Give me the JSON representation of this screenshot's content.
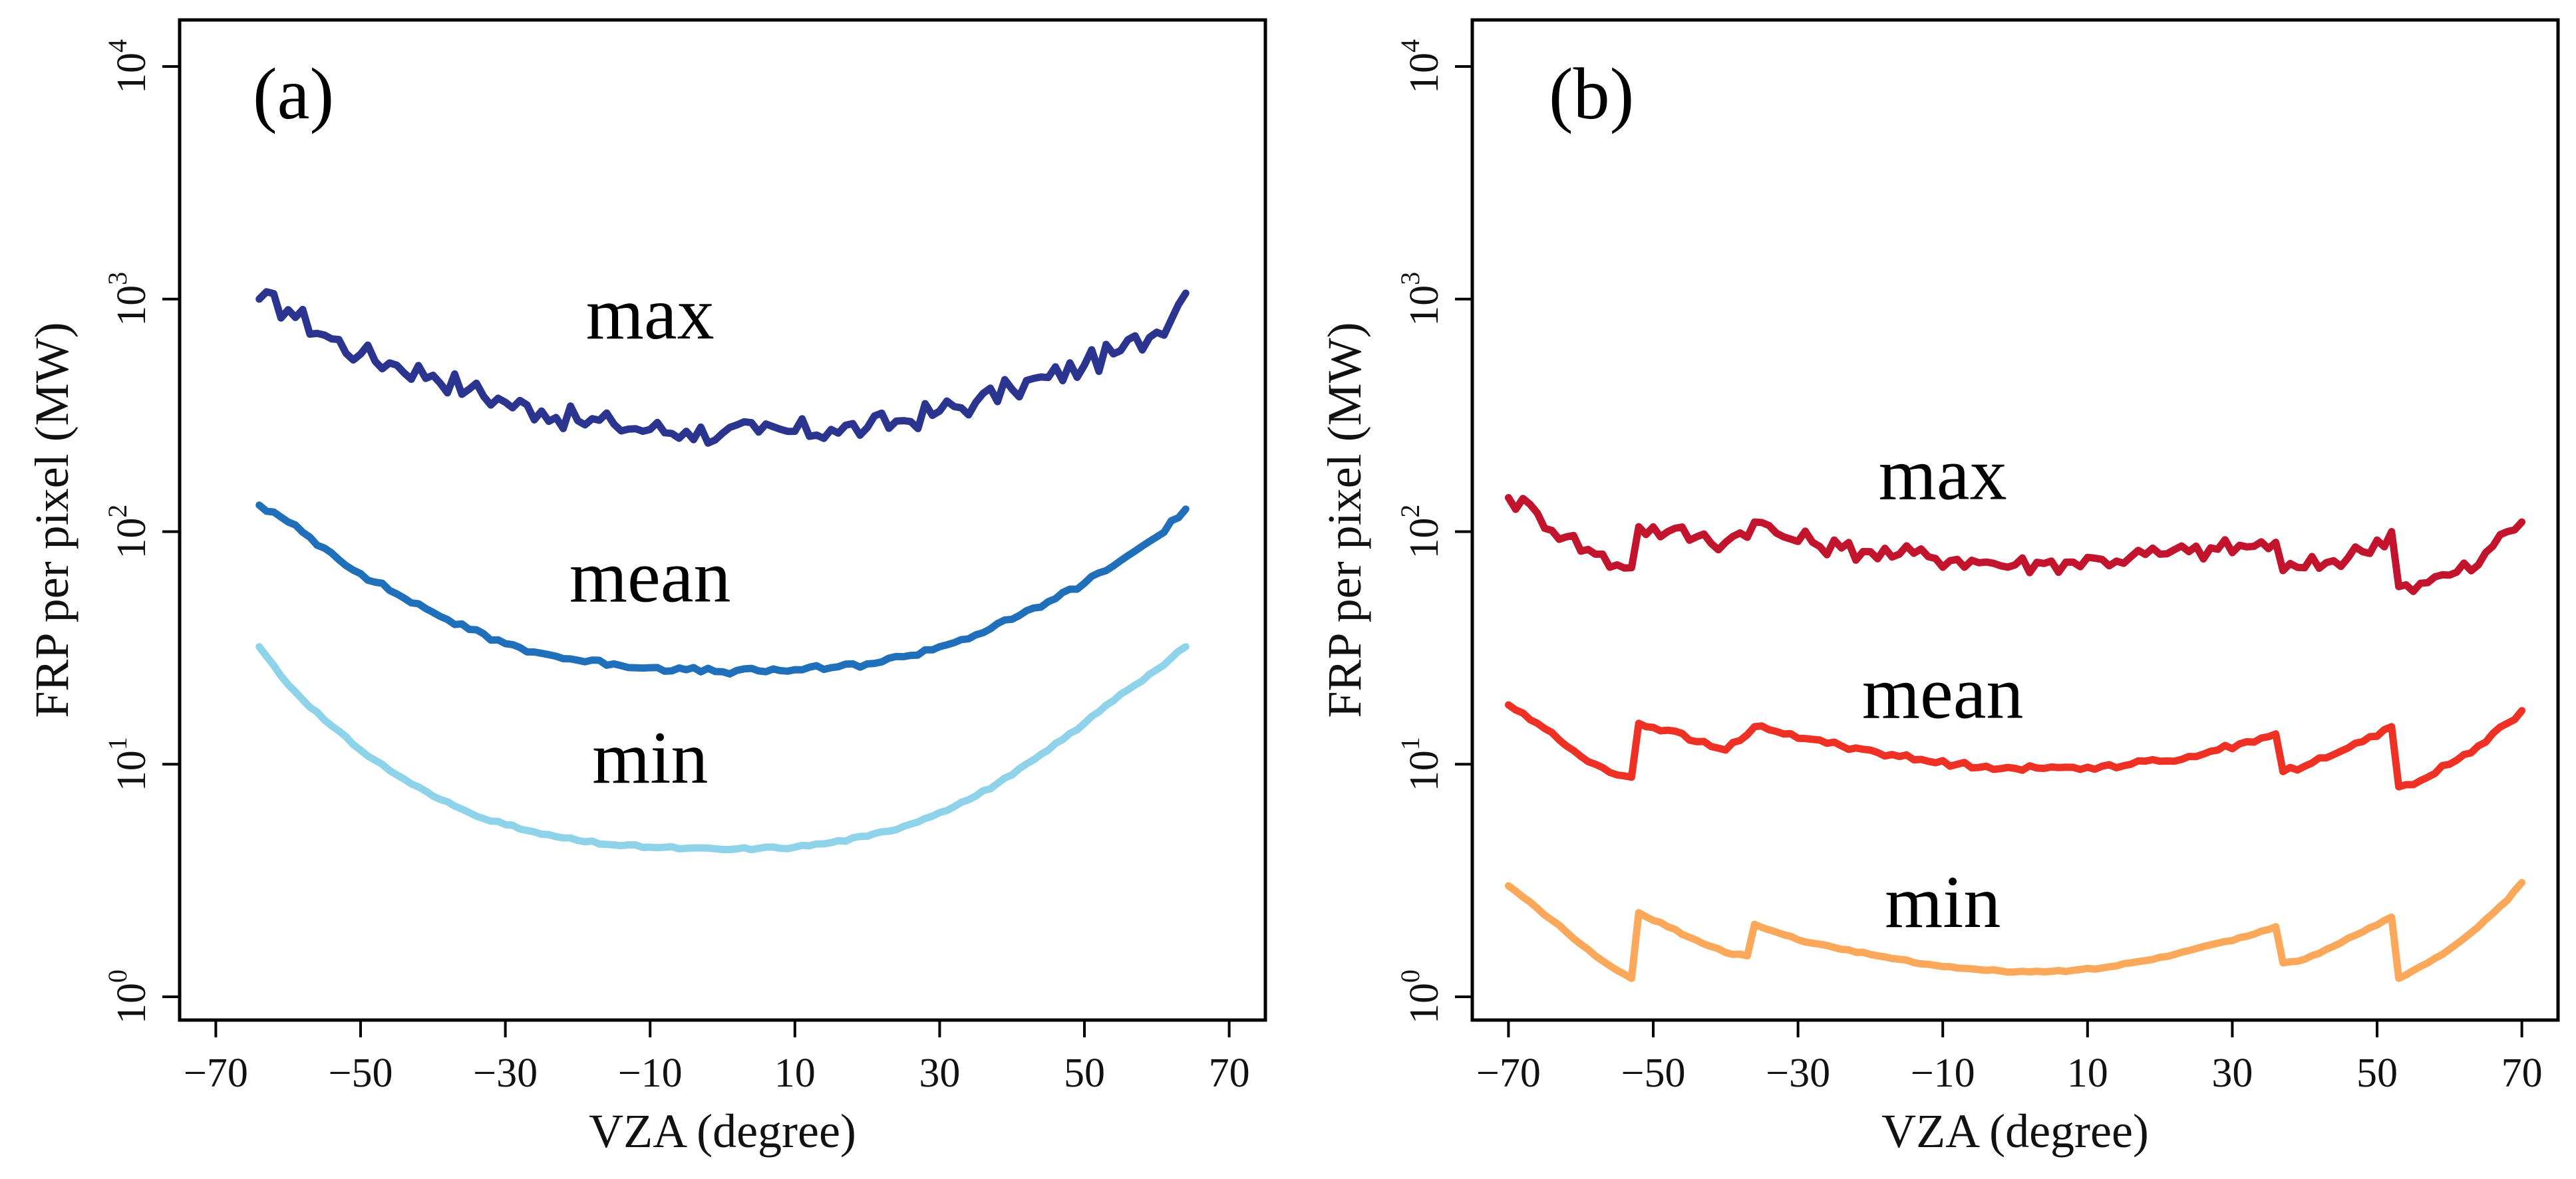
{
  "chart_data": [
    {
      "type": "line",
      "panel_label": "(a)",
      "xlabel": "VZA (degree)",
      "ylabel": "FRP per pixel (MW)",
      "xlim": [
        -75,
        75
      ],
      "ylim_log10": [
        -0.1,
        4.2
      ],
      "yscale": "log",
      "xticks": [
        -70,
        -50,
        -30,
        -10,
        10,
        30,
        50,
        70
      ],
      "xtick_labels": [
        "−70",
        "−50",
        "−30",
        "−10",
        "10",
        "30",
        "50",
        "70"
      ],
      "yticks": [
        {
          "base": "10",
          "exp": "0",
          "value": 1
        },
        {
          "base": "10",
          "exp": "1",
          "value": 10
        },
        {
          "base": "10",
          "exp": "2",
          "value": 100
        },
        {
          "base": "10",
          "exp": "3",
          "value": 1000
        },
        {
          "base": "10",
          "exp": "4",
          "value": 10000
        }
      ],
      "series": [
        {
          "name": "max",
          "color": "#2b3590",
          "jitter": 0.055,
          "label_at": [
            -10,
            2.83
          ],
          "x": [
            -64,
            -60,
            -55,
            -50,
            -45,
            -40,
            -35,
            -30,
            -25,
            -20,
            -15,
            -10,
            -5,
            0,
            5,
            10,
            15,
            20,
            25,
            30,
            35,
            40,
            45,
            50,
            55,
            60,
            64
          ],
          "y": [
            1000,
            900,
            700,
            580,
            520,
            470,
            410,
            360,
            330,
            300,
            290,
            275,
            270,
            265,
            268,
            270,
            275,
            280,
            300,
            330,
            360,
            410,
            460,
            520,
            600,
            720,
            1060
          ]
        },
        {
          "name": "mean",
          "color": "#1f6fba",
          "jitter": 0.012,
          "label_at": [
            -10,
            1.7
          ],
          "x": [
            -64,
            -60,
            -55,
            -50,
            -45,
            -40,
            -35,
            -30,
            -25,
            -20,
            -15,
            -10,
            -5,
            0,
            5,
            10,
            15,
            20,
            25,
            30,
            35,
            40,
            45,
            50,
            55,
            60,
            64
          ],
          "y": [
            130,
            110,
            85,
            66,
            54,
            45,
            38,
            33,
            30,
            28,
            27,
            26,
            25.5,
            25,
            25.2,
            25.5,
            26,
            27,
            29,
            32,
            36,
            42,
            50,
            60,
            75,
            95,
            125
          ],
          "label_offset_y": 0
        },
        {
          "name": "min",
          "color": "#8fd3ea",
          "jitter": 0.006,
          "label_at": [
            -10,
            0.92
          ],
          "x": [
            -64,
            -60,
            -55,
            -50,
            -45,
            -40,
            -35,
            -30,
            -25,
            -20,
            -15,
            -10,
            -5,
            0,
            5,
            10,
            15,
            20,
            25,
            30,
            35,
            40,
            45,
            50,
            55,
            60,
            64
          ],
          "y": [
            32,
            22,
            15.5,
            11.5,
            9.0,
            7.3,
            6.2,
            5.5,
            5.0,
            4.7,
            4.5,
            4.4,
            4.35,
            4.3,
            4.35,
            4.4,
            4.6,
            4.9,
            5.4,
            6.2,
            7.3,
            9.0,
            11.5,
            15,
            20,
            25.5,
            32
          ]
        }
      ]
    },
    {
      "type": "line",
      "panel_label": "(b)",
      "xlabel": "VZA (degree)",
      "ylabel": "FRP per pixel (MW)",
      "xlim": [
        -75,
        75
      ],
      "ylim_log10": [
        -0.1,
        4.2
      ],
      "yscale": "log",
      "xticks": [
        -70,
        -50,
        -30,
        -10,
        10,
        30,
        50,
        70
      ],
      "xtick_labels": [
        "−70",
        "−50",
        "−30",
        "−10",
        "10",
        "30",
        "50",
        "70"
      ],
      "yticks": [
        {
          "base": "10",
          "exp": "0",
          "value": 1
        },
        {
          "base": "10",
          "exp": "1",
          "value": 10
        },
        {
          "base": "10",
          "exp": "2",
          "value": 100
        },
        {
          "base": "10",
          "exp": "3",
          "value": 1000
        },
        {
          "base": "10",
          "exp": "4",
          "value": 10000
        }
      ],
      "series": [
        {
          "name": "max",
          "color": "#c3142d",
          "jitter": 0.045,
          "label_at": [
            -10,
            2.14
          ],
          "x": [
            -70,
            -66,
            -62,
            -58,
            -55,
            -53,
            -52,
            -48,
            -44,
            -40,
            -36,
            -32,
            -28,
            -24,
            -20,
            -16,
            -12,
            -8,
            -4,
            0,
            4,
            8,
            12,
            16,
            20,
            24,
            28,
            32,
            36,
            37,
            40,
            44,
            48,
            52,
            53,
            56,
            60,
            64,
            68,
            70
          ],
          "y": [
            140,
            120,
            95,
            80,
            72,
            70,
            105,
            100,
            95,
            90,
            110,
            95,
            90,
            85,
            82,
            80,
            78,
            76,
            74,
            72,
            73,
            74,
            76,
            78,
            80,
            82,
            84,
            86,
            90,
            68,
            70,
            75,
            82,
            100,
            58,
            60,
            65,
            72,
            100,
            110
          ]
        },
        {
          "name": "mean",
          "color": "#ee3124",
          "jitter": 0.012,
          "label_at": [
            -10,
            1.2
          ],
          "x": [
            -70,
            -66,
            -62,
            -58,
            -55,
            -53,
            -52,
            -48,
            -44,
            -40,
            -36,
            -32,
            -28,
            -24,
            -20,
            -16,
            -12,
            -8,
            -4,
            0,
            4,
            8,
            12,
            16,
            20,
            24,
            28,
            32,
            36,
            37,
            40,
            44,
            48,
            52,
            53,
            56,
            60,
            64,
            68,
            70
          ],
          "y": [
            18,
            15,
            12,
            10,
            9,
            8.8,
            15,
            14,
            12.5,
            11.5,
            14.5,
            13.5,
            12.8,
            12,
            11.5,
            10.8,
            10.3,
            10,
            9.8,
            9.6,
            9.6,
            9.7,
            9.8,
            10,
            10.3,
            10.8,
            11.5,
            12.5,
            13.5,
            9.3,
            9.8,
            11,
            12.5,
            14.5,
            8,
            8.5,
            10,
            12,
            15,
            17
          ]
        },
        {
          "name": "min",
          "color": "#fba85a",
          "jitter": 0.004,
          "label_at": [
            -10,
            0.3
          ],
          "x": [
            -70,
            -66,
            -62,
            -58,
            -55,
            -53,
            -52,
            -48,
            -44,
            -40,
            -37,
            -36,
            -32,
            -28,
            -24,
            -20,
            -16,
            -12,
            -8,
            -4,
            0,
            4,
            8,
            12,
            16,
            20,
            24,
            28,
            32,
            36,
            37,
            40,
            44,
            48,
            52,
            53,
            56,
            60,
            64,
            68,
            70
          ],
          "y": [
            3.0,
            2.4,
            1.9,
            1.5,
            1.3,
            1.2,
            2.3,
            2.0,
            1.75,
            1.55,
            1.5,
            2.05,
            1.85,
            1.7,
            1.6,
            1.52,
            1.45,
            1.38,
            1.33,
            1.3,
            1.28,
            1.28,
            1.3,
            1.33,
            1.4,
            1.48,
            1.58,
            1.7,
            1.82,
            2.0,
            1.4,
            1.45,
            1.65,
            1.9,
            2.2,
            1.2,
            1.35,
            1.6,
            2.0,
            2.6,
            3.1
          ]
        }
      ]
    }
  ]
}
